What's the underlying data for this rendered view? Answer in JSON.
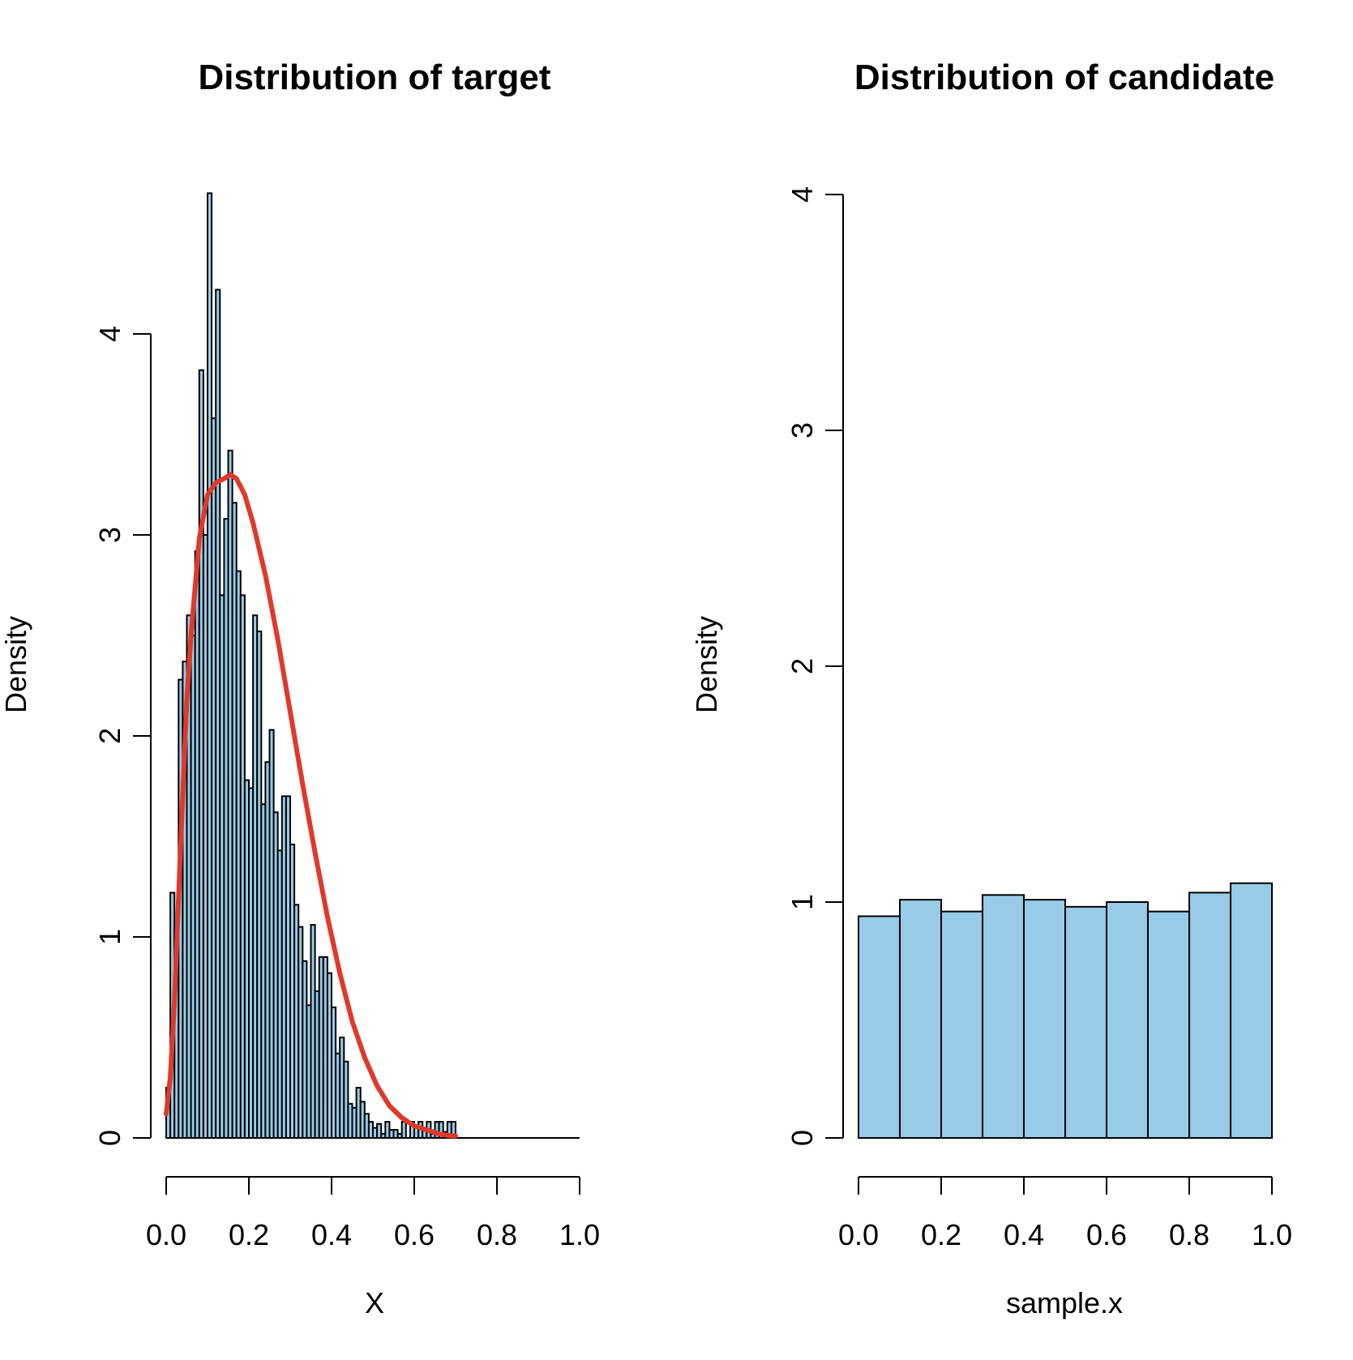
{
  "colors": {
    "bar_fill": "#97cbe7",
    "bar_stroke": "#000000",
    "density_curve": "#e0392b"
  },
  "chart_data": [
    {
      "type": "bar",
      "subtype": "histogram",
      "title": "Distribution of target",
      "xlabel": "X",
      "ylabel": "Density",
      "xlim": [
        0,
        1
      ],
      "ylim": [
        0,
        4
      ],
      "x_ticks": [
        0.0,
        0.2,
        0.4,
        0.6,
        0.8,
        1.0
      ],
      "x_tick_labels": [
        "0.0",
        "0.2",
        "0.4",
        "0.6",
        "0.8",
        "1.0"
      ],
      "y_ticks": [
        0,
        1,
        2,
        3,
        4
      ],
      "y_tick_labels": [
        "0",
        "1",
        "2",
        "3",
        "4"
      ],
      "bin_width": 0.01,
      "bin_start": 0.0,
      "values": [
        0.25,
        1.22,
        1.06,
        2.28,
        2.37,
        2.6,
        2.5,
        2.92,
        3.82,
        3.0,
        4.7,
        3.58,
        4.22,
        2.7,
        3.08,
        3.42,
        3.16,
        2.82,
        2.7,
        1.78,
        1.74,
        2.6,
        2.52,
        1.66,
        1.87,
        2.03,
        1.62,
        1.43,
        1.7,
        1.7,
        1.46,
        1.16,
        1.05,
        0.88,
        0.66,
        1.06,
        0.73,
        0.9,
        0.9,
        0.82,
        0.65,
        0.42,
        0.5,
        0.38,
        0.17,
        0.15,
        0.25,
        0.18,
        0.12,
        0.08,
        0.05,
        0.07,
        0.02,
        0.08,
        0.04,
        0.04,
        0.02,
        0.08,
        0.0,
        0.08,
        0.05,
        0.08,
        0.04,
        0.08,
        0.02,
        0.08,
        0.08,
        0.03,
        0.08,
        0.08
      ],
      "series": [
        {
          "type": "line",
          "x": [
            0.0,
            0.01,
            0.02,
            0.03,
            0.04,
            0.05,
            0.06,
            0.08,
            0.1,
            0.12,
            0.14,
            0.155,
            0.17,
            0.19,
            0.21,
            0.24,
            0.27,
            0.3,
            0.33,
            0.36,
            0.39,
            0.42,
            0.45,
            0.48,
            0.51,
            0.54,
            0.57,
            0.6,
            0.63,
            0.66,
            0.69,
            0.7
          ],
          "y": [
            0.12,
            0.3,
            0.68,
            1.2,
            1.7,
            2.18,
            2.5,
            2.98,
            3.2,
            3.26,
            3.28,
            3.3,
            3.28,
            3.2,
            3.06,
            2.8,
            2.48,
            2.12,
            1.76,
            1.42,
            1.1,
            0.82,
            0.58,
            0.4,
            0.26,
            0.16,
            0.1,
            0.06,
            0.04,
            0.02,
            0.01,
            0.01
          ]
        }
      ]
    },
    {
      "type": "bar",
      "subtype": "histogram",
      "title": "Distribution of candidate",
      "xlabel": "sample.x",
      "ylabel": "Density",
      "xlim": [
        0,
        1
      ],
      "ylim": [
        0,
        4
      ],
      "x_ticks": [
        0.0,
        0.2,
        0.4,
        0.6,
        0.8,
        1.0
      ],
      "x_tick_labels": [
        "0.0",
        "0.2",
        "0.4",
        "0.6",
        "0.8",
        "1.0"
      ],
      "y_ticks": [
        0,
        1,
        2,
        3,
        4
      ],
      "y_tick_labels": [
        "0",
        "1",
        "2",
        "3",
        "4"
      ],
      "bin_width": 0.1,
      "bin_start": 0.0,
      "values": [
        0.94,
        1.01,
        0.96,
        1.03,
        1.01,
        0.98,
        1.0,
        0.96,
        1.04,
        1.08
      ]
    }
  ]
}
